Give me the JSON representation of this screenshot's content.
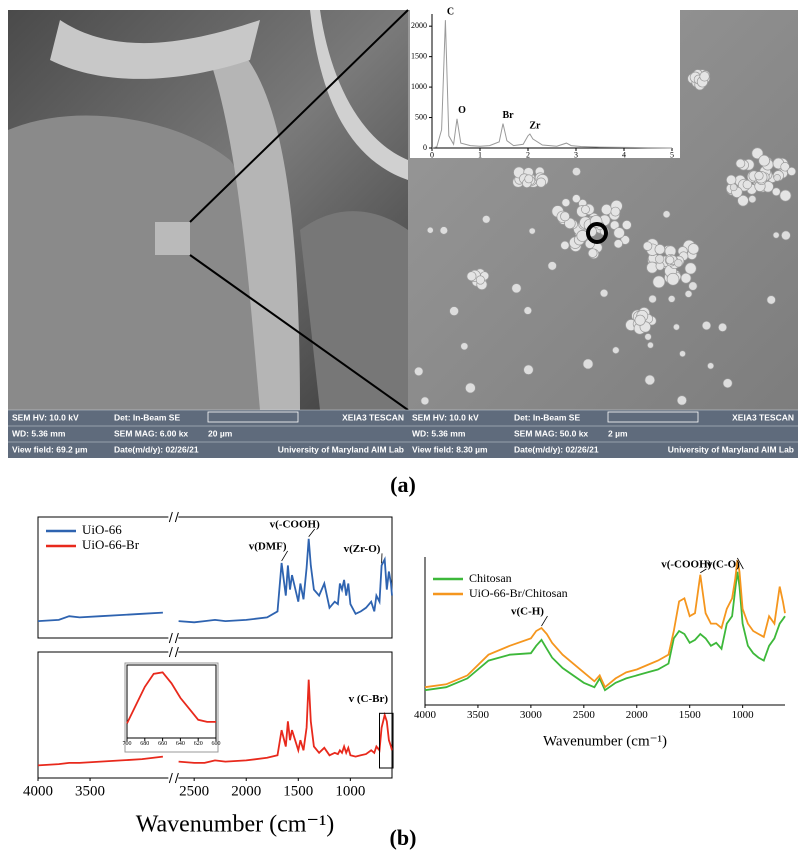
{
  "panel_a": {
    "label": "(a)",
    "sem_images": [
      {
        "info_rows": [
          [
            "SEM HV: 10.0 kV",
            "Det: In-Beam SE",
            "XEIA3 TESCAN"
          ],
          [
            "WD: 5.36 mm",
            "SEM MAG: 6.00 kx",
            "20 µm"
          ],
          [
            "View field: 69.2 µm",
            "Date(m/d/y): 02/26/21",
            "University of Maryland AIM Lab"
          ]
        ]
      },
      {
        "info_rows": [
          [
            "SEM HV: 10.0 kV",
            "Det: In-Beam SE",
            "XEIA3 TESCAN"
          ],
          [
            "WD: 5.36 mm",
            "SEM MAG: 50.0 kx",
            "2 µm"
          ],
          [
            "View field: 8.30 µm",
            "Date(m/d/y): 02/26/21",
            "University of Maryland AIM Lab"
          ]
        ]
      }
    ]
  },
  "panel_b": {
    "label": "(b)"
  },
  "chart_data": [
    {
      "type": "line",
      "xlim": [
        0,
        5
      ],
      "ylim": [
        0,
        2200
      ],
      "xticks": [
        0,
        1,
        2,
        3,
        4,
        5
      ],
      "yticks": [
        0,
        500,
        1000,
        1500,
        2000
      ],
      "x": [
        0,
        0.1,
        0.2,
        0.28,
        0.35,
        0.45,
        0.52,
        0.6,
        0.8,
        1.0,
        1.2,
        1.4,
        1.48,
        1.56,
        1.7,
        1.9,
        2.0,
        2.04,
        2.1,
        2.3,
        2.6,
        2.8,
        2.9,
        3.1,
        3.5,
        4,
        4.5,
        5
      ],
      "series": [
        {
          "color": "#9a9a9a",
          "values": [
            0,
            20,
            300,
            2100,
            200,
            60,
            480,
            80,
            40,
            30,
            40,
            100,
            400,
            120,
            40,
            60,
            200,
            230,
            150,
            50,
            30,
            80,
            40,
            25,
            15,
            10,
            5,
            0
          ]
        }
      ],
      "annotations": [
        {
          "text": "C",
          "x": 0.28
        },
        {
          "text": "O",
          "x": 0.52
        },
        {
          "text": "Br",
          "x": 1.48
        },
        {
          "text": "Zr",
          "x": 2.04
        }
      ]
    },
    {
      "type": "line",
      "xlim": [
        4000,
        600
      ],
      "ylim": [
        0,
        100
      ],
      "legend": "upper left",
      "x": [
        4000,
        3800,
        3700,
        3600,
        3400,
        3200,
        3000,
        2800,
        2750,
        2650,
        2500,
        2400,
        2300,
        2200,
        2000,
        1800,
        1700,
        1660,
        1620,
        1600,
        1580,
        1560,
        1500,
        1480,
        1450,
        1420,
        1400,
        1380,
        1350,
        1300,
        1250,
        1200,
        1150,
        1120,
        1100,
        1080,
        1060,
        1040,
        1020,
        1000,
        950,
        900,
        850,
        800,
        770,
        750,
        720,
        700,
        670,
        650,
        630,
        610,
        600
      ],
      "series": [
        {
          "name": "UiO-66",
          "color": "#2e63b0",
          "values": [
            14,
            15,
            18,
            17,
            18,
            19,
            20,
            21,
            null,
            14,
            13,
            14,
            15,
            14,
            15,
            17,
            22,
            62,
            35,
            60,
            40,
            52,
            30,
            45,
            32,
            58,
            82,
            60,
            40,
            35,
            45,
            25,
            30,
            28,
            45,
            40,
            48,
            35,
            45,
            28,
            20,
            22,
            25,
            30,
            22,
            35,
            30,
            60,
            65,
            40,
            55,
            45,
            35
          ]
        }
      ],
      "annotations": [
        {
          "text": "v(-COOH)",
          "x": 1400
        },
        {
          "text": "v(DMF)",
          "x": 1660
        },
        {
          "text": "v(Zr-O)",
          "x": 700
        }
      ]
    },
    {
      "type": "line",
      "xlim": [
        4000,
        600
      ],
      "ylim": [
        0,
        100
      ],
      "xticks": [
        4000,
        3500,
        2500,
        2000,
        1500,
        1000
      ],
      "x_label": "Wavenumber (cm⁻¹)",
      "x": [
        4000,
        3800,
        3700,
        3600,
        3400,
        3200,
        3000,
        2800,
        2750,
        2650,
        2500,
        2400,
        2300,
        2200,
        2000,
        1800,
        1700,
        1660,
        1620,
        1600,
        1580,
        1560,
        1500,
        1480,
        1450,
        1420,
        1400,
        1380,
        1350,
        1300,
        1250,
        1200,
        1150,
        1120,
        1100,
        1080,
        1060,
        1040,
        1020,
        1000,
        950,
        900,
        850,
        800,
        770,
        750,
        720,
        700,
        670,
        650,
        630,
        610,
        600
      ],
      "series": [
        {
          "name": "UiO-66-Br",
          "color": "#e8291c",
          "values": [
            10,
            11,
            12,
            12,
            13,
            14,
            15,
            17,
            null,
            13,
            12,
            12,
            14,
            13,
            14,
            16,
            18,
            38,
            25,
            45,
            30,
            38,
            22,
            30,
            22,
            40,
            78,
            45,
            25,
            20,
            24,
            18,
            20,
            19,
            22,
            20,
            25,
            20,
            24,
            18,
            17,
            18,
            19,
            22,
            20,
            25,
            22,
            40,
            50,
            45,
            30,
            25,
            22
          ]
        }
      ],
      "annotations": [
        {
          "text": "v (C-Br)",
          "x": 650
        }
      ]
    },
    {
      "type": "line",
      "xlim": [
        700,
        600
      ],
      "ylim": [
        0,
        100
      ],
      "xticks": [
        700,
        680,
        660,
        640,
        620,
        600
      ],
      "x": [
        700,
        690,
        680,
        670,
        660,
        650,
        640,
        630,
        620,
        610,
        600
      ],
      "series": [
        {
          "color": "#e8291c",
          "values": [
            20,
            45,
            70,
            88,
            90,
            75,
            55,
            40,
            25,
            22,
            22
          ]
        }
      ]
    },
    {
      "type": "line",
      "xlim": [
        4000,
        600
      ],
      "ylim": [
        0,
        100
      ],
      "xticks": [
        4000,
        3500,
        3000,
        2500,
        2000,
        1500,
        1000
      ],
      "x_label": "Wavenumber (cm⁻¹)",
      "legend": "upper left",
      "x": [
        4000,
        3800,
        3600,
        3400,
        3200,
        3000,
        2950,
        2900,
        2850,
        2800,
        2700,
        2500,
        2400,
        2350,
        2300,
        2200,
        2100,
        2000,
        1900,
        1800,
        1700,
        1650,
        1600,
        1550,
        1500,
        1450,
        1400,
        1350,
        1300,
        1250,
        1200,
        1150,
        1100,
        1070,
        1050,
        1030,
        1000,
        950,
        900,
        850,
        800,
        750,
        700,
        650,
        620,
        600
      ],
      "series": [
        {
          "name": "Chitosan",
          "color": "#3db83a",
          "values": [
            10,
            12,
            18,
            30,
            34,
            35,
            40,
            44,
            38,
            32,
            25,
            15,
            12,
            18,
            10,
            15,
            18,
            20,
            22,
            24,
            28,
            45,
            50,
            48,
            42,
            44,
            48,
            45,
            40,
            42,
            38,
            55,
            60,
            78,
            90,
            80,
            55,
            40,
            35,
            32,
            30,
            40,
            45,
            55,
            58,
            60
          ]
        },
        {
          "name": "UiO-66-Br/Chitosan",
          "color": "#f5961e",
          "values": [
            12,
            14,
            20,
            34,
            40,
            45,
            50,
            52,
            48,
            42,
            34,
            22,
            16,
            20,
            12,
            18,
            22,
            24,
            27,
            30,
            34,
            50,
            70,
            72,
            60,
            62,
            88,
            62,
            55,
            55,
            52,
            65,
            72,
            85,
            98,
            90,
            65,
            55,
            50,
            48,
            46,
            60,
            55,
            80,
            70,
            62
          ]
        }
      ],
      "annotations": [
        {
          "text": "v(C-H)",
          "x": 2900
        },
        {
          "text": "v(-COOH)",
          "x": 1400
        },
        {
          "text": "v(C-O)",
          "x": 1050
        }
      ]
    }
  ]
}
